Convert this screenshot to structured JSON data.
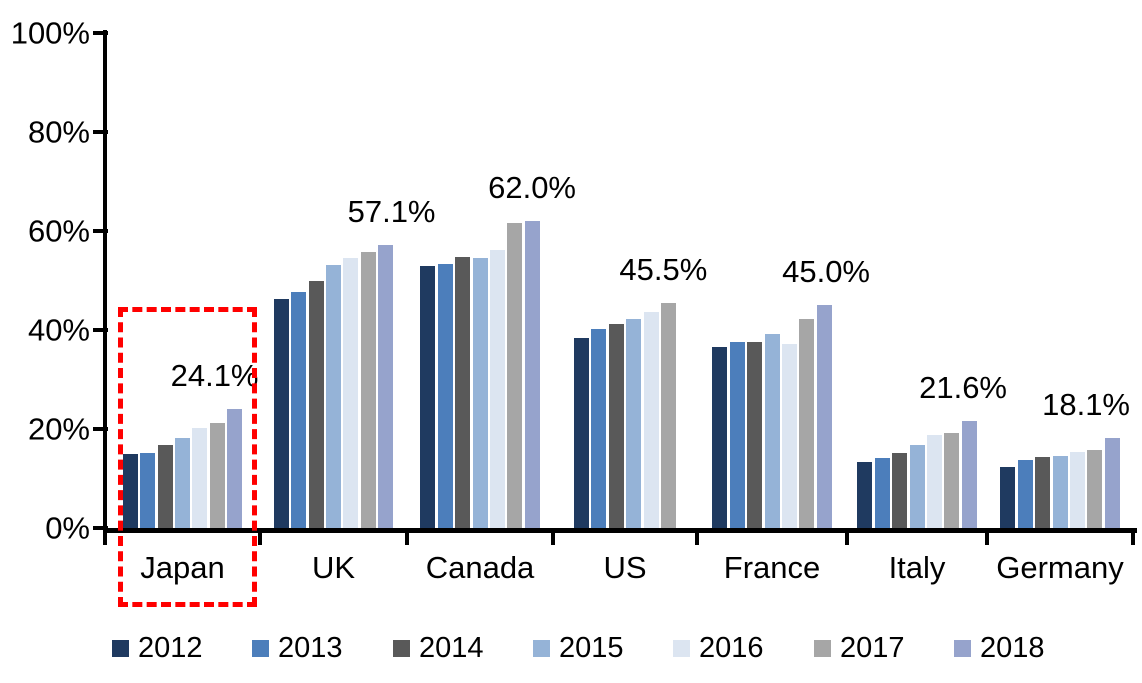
{
  "chart_data": {
    "type": "bar",
    "title": "",
    "xlabel": "",
    "ylabel": "",
    "ylim": [
      0,
      100
    ],
    "grid": false,
    "legend_position": "bottom",
    "y_ticks": [
      "100%",
      "80%",
      "60%",
      "40%",
      "20%",
      "0%"
    ],
    "y_tick_values": [
      100,
      80,
      60,
      40,
      20,
      0
    ],
    "categories": [
      "Japan",
      "UK",
      "Canada",
      "US",
      "France",
      "Italy",
      "Germany"
    ],
    "series": [
      {
        "name": "2012",
        "color": "#1F3A60",
        "values": [
          14.9,
          46.3,
          52.9,
          38.3,
          36.5,
          13.3,
          12.3
        ]
      },
      {
        "name": "2013",
        "color": "#4C7EBB",
        "values": [
          15.1,
          47.7,
          53.3,
          40.2,
          37.6,
          14.1,
          13.7
        ]
      },
      {
        "name": "2014",
        "color": "#595959",
        "values": [
          16.8,
          49.9,
          54.8,
          41.2,
          37.6,
          15.2,
          14.3
        ]
      },
      {
        "name": "2015",
        "color": "#95B3D7",
        "values": [
          18.2,
          53.1,
          54.6,
          42.3,
          39.2,
          16.7,
          14.6
        ]
      },
      {
        "name": "2016",
        "color": "#DCE5F1",
        "values": [
          20.3,
          54.6,
          56.2,
          43.7,
          37.2,
          18.8,
          15.4
        ]
      },
      {
        "name": "2017",
        "color": "#A6A6A6",
        "values": [
          21.3,
          55.7,
          61.7,
          45.5,
          42.3,
          19.1,
          15.7
        ]
      },
      {
        "name": "2018",
        "color": "#96A3CC",
        "values": [
          24.1,
          57.1,
          62.0,
          null,
          45.0,
          21.6,
          18.1
        ]
      }
    ],
    "data_labels": [
      "24.1%",
      "57.1%",
      "62.0%",
      "45.5%",
      "45.0%",
      "21.6%",
      "18.1%"
    ],
    "annotations": {
      "highlight_category": "Japan",
      "highlight_color": "#FF0000"
    }
  },
  "colors": {
    "background": "#FFFFFF",
    "axis": "#000000",
    "text": "#000000"
  }
}
